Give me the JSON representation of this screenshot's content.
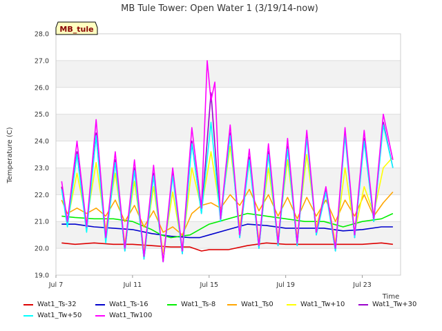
{
  "chart_data": {
    "type": "line",
    "title": "MB Tule Tower: Open Water 1 (3/19/14-now)",
    "station_label": "MB_tule",
    "xlabel": "Time",
    "ylabel": "Temperature (C)",
    "ylim": [
      19.0,
      28.0
    ],
    "xlim": [
      7.0,
      25.0
    ],
    "y_ticks": [
      "19.0",
      "20.0",
      "21.0",
      "22.0",
      "23.0",
      "24.0",
      "25.0",
      "26.0",
      "27.0",
      "28.0"
    ],
    "y_tick_values": [
      19,
      20,
      21,
      22,
      23,
      24,
      25,
      26,
      27,
      28
    ],
    "x_ticks": [
      "Jul 7",
      "Jul 11",
      "Jul 15",
      "Jul 19",
      "Jul 23"
    ],
    "x_tick_values": [
      7,
      11,
      15,
      19,
      23
    ],
    "x_unit": "day of July 2014",
    "series": [
      {
        "name": "Wat1_Ts-32",
        "color": "#dd0000",
        "x": [
          7.3,
          8.0,
          9.0,
          10.0,
          11.0,
          12.0,
          13.0,
          14.0,
          14.6,
          15.0,
          16.0,
          17.0,
          18.0,
          19.0,
          20.0,
          21.0,
          22.0,
          23.0,
          24.0,
          24.6
        ],
        "values": [
          20.2,
          20.15,
          20.2,
          20.15,
          20.15,
          20.1,
          20.05,
          20.05,
          19.9,
          19.95,
          19.95,
          20.1,
          20.2,
          20.15,
          20.15,
          20.15,
          20.15,
          20.15,
          20.2,
          20.15
        ]
      },
      {
        "name": "Wat1_Ts-16",
        "color": "#0000cc",
        "x": [
          7.3,
          8.0,
          9.0,
          10.0,
          11.0,
          12.0,
          13.0,
          14.0,
          14.5,
          15.0,
          16.0,
          17.0,
          18.0,
          19.0,
          20.0,
          21.0,
          22.0,
          23.0,
          24.0,
          24.6
        ],
        "values": [
          20.9,
          20.9,
          20.8,
          20.75,
          20.7,
          20.55,
          20.45,
          20.4,
          20.4,
          20.5,
          20.7,
          20.9,
          20.85,
          20.75,
          20.75,
          20.75,
          20.65,
          20.7,
          20.8,
          20.8
        ]
      },
      {
        "name": "Wat1_Ts-8",
        "color": "#00ee00",
        "x": [
          7.3,
          8.0,
          9.0,
          10.0,
          11.0,
          12.0,
          12.5,
          13.0,
          14.0,
          15.0,
          16.0,
          17.0,
          18.0,
          19.0,
          20.0,
          21.0,
          22.0,
          23.0,
          24.0,
          24.6
        ],
        "values": [
          21.2,
          21.15,
          21.1,
          21.1,
          21.0,
          20.7,
          20.5,
          20.4,
          20.5,
          20.9,
          21.1,
          21.3,
          21.2,
          21.1,
          21.0,
          21.0,
          20.8,
          21.0,
          21.1,
          21.3
        ]
      },
      {
        "name": "Wat1_Ts0",
        "color": "#ffa500",
        "x": [
          7.3,
          7.6,
          8.1,
          8.6,
          9.1,
          9.6,
          10.1,
          10.6,
          11.1,
          11.6,
          12.1,
          12.6,
          13.1,
          13.6,
          14.1,
          14.6,
          15.1,
          15.6,
          16.1,
          16.6,
          17.1,
          17.6,
          18.1,
          18.6,
          19.1,
          19.6,
          20.1,
          20.6,
          21.1,
          21.6,
          22.1,
          22.6,
          23.1,
          23.6,
          24.1,
          24.6
        ],
        "values": [
          21.8,
          21.3,
          21.5,
          21.3,
          21.5,
          21.2,
          21.8,
          21.0,
          21.6,
          20.8,
          21.4,
          20.6,
          20.8,
          20.5,
          21.3,
          21.6,
          21.7,
          21.5,
          22.0,
          21.6,
          22.2,
          21.4,
          22.0,
          21.2,
          21.9,
          21.1,
          21.9,
          21.2,
          21.8,
          21.0,
          21.8,
          21.2,
          22.0,
          21.2,
          21.7,
          22.1
        ]
      },
      {
        "name": "Wat1_Tw+10",
        "color": "#ffff00",
        "x": [
          7.3,
          7.6,
          8.1,
          8.6,
          9.1,
          9.6,
          10.1,
          10.6,
          11.1,
          11.6,
          12.1,
          12.6,
          13.1,
          13.6,
          14.1,
          14.6,
          15.1,
          15.6,
          16.1,
          16.6,
          17.1,
          17.6,
          18.1,
          18.6,
          19.1,
          19.6,
          20.1,
          20.6,
          21.1,
          21.6,
          22.1,
          22.6,
          23.1,
          23.6,
          24.1,
          24.6
        ],
        "values": [
          22.3,
          21.0,
          22.8,
          21.0,
          23.2,
          20.7,
          22.8,
          20.2,
          22.5,
          19.9,
          22.3,
          19.8,
          22.1,
          20.0,
          23.0,
          21.5,
          23.6,
          21.3,
          23.8,
          20.8,
          23.2,
          20.3,
          23.0,
          20.4,
          23.3,
          20.4,
          23.5,
          20.8,
          22.2,
          20.2,
          23.0,
          20.6,
          22.3,
          21.3,
          23.0,
          23.4
        ]
      },
      {
        "name": "Wat1_Tw+30",
        "color": "#9900cc",
        "x": [
          7.3,
          7.6,
          8.1,
          8.6,
          9.1,
          9.6,
          10.1,
          10.6,
          11.1,
          11.6,
          12.1,
          12.6,
          13.1,
          13.6,
          14.1,
          14.6,
          15.1,
          15.6,
          16.1,
          16.6,
          17.1,
          17.6,
          18.1,
          18.6,
          19.1,
          19.6,
          20.1,
          20.6,
          21.1,
          21.6,
          22.1,
          22.6,
          23.1,
          23.6,
          24.1,
          24.6
        ],
        "values": [
          22.3,
          20.9,
          23.6,
          20.7,
          24.3,
          20.3,
          23.3,
          19.9,
          23.0,
          19.6,
          22.8,
          19.5,
          22.8,
          19.8,
          24.0,
          21.3,
          25.8,
          21.0,
          24.3,
          20.4,
          23.4,
          20.0,
          23.6,
          20.1,
          23.8,
          20.1,
          24.2,
          20.5,
          22.2,
          19.9,
          24.3,
          20.4,
          24.1,
          21.0,
          24.7,
          23.0
        ]
      },
      {
        "name": "Wat1_Tw+50",
        "color": "#00ffff",
        "x": [
          7.3,
          7.6,
          8.1,
          8.6,
          9.1,
          9.6,
          10.1,
          10.6,
          11.1,
          11.6,
          12.1,
          12.6,
          13.1,
          13.6,
          14.1,
          14.6,
          15.1,
          15.6,
          16.1,
          16.6,
          17.1,
          17.6,
          18.1,
          18.6,
          19.1,
          19.6,
          20.1,
          20.6,
          21.1,
          21.6,
          22.1,
          22.6,
          23.1,
          23.6,
          24.1,
          24.6
        ],
        "values": [
          22.2,
          20.8,
          23.5,
          20.6,
          24.2,
          20.2,
          23.2,
          19.9,
          22.9,
          19.6,
          22.7,
          19.5,
          22.7,
          19.8,
          23.9,
          21.3,
          24.7,
          21.0,
          24.2,
          20.4,
          23.3,
          20.0,
          23.5,
          20.1,
          23.7,
          20.1,
          24.1,
          20.5,
          22.1,
          19.9,
          24.2,
          20.4,
          24.0,
          21.0,
          24.6,
          23.0
        ]
      },
      {
        "name": "Wat1_Tw100",
        "color": "#ff00ff",
        "x": [
          7.3,
          7.6,
          8.1,
          8.6,
          9.1,
          9.6,
          10.1,
          10.6,
          11.1,
          11.6,
          12.1,
          12.6,
          13.1,
          13.6,
          14.1,
          14.6,
          14.9,
          15.1,
          15.3,
          15.6,
          16.1,
          16.6,
          17.1,
          17.6,
          18.1,
          18.6,
          19.1,
          19.6,
          20.1,
          20.6,
          21.1,
          21.6,
          22.1,
          22.6,
          23.1,
          23.6,
          24.1,
          24.6
        ],
        "values": [
          22.5,
          21.0,
          24.0,
          20.8,
          24.8,
          20.4,
          23.6,
          20.0,
          23.3,
          19.7,
          23.1,
          19.5,
          23.0,
          19.9,
          24.5,
          21.5,
          27.0,
          25.5,
          26.2,
          21.1,
          24.6,
          20.5,
          23.7,
          20.1,
          23.9,
          20.2,
          24.1,
          20.2,
          24.4,
          20.6,
          22.3,
          20.0,
          24.5,
          20.5,
          24.4,
          21.1,
          25.0,
          23.3
        ]
      }
    ]
  }
}
